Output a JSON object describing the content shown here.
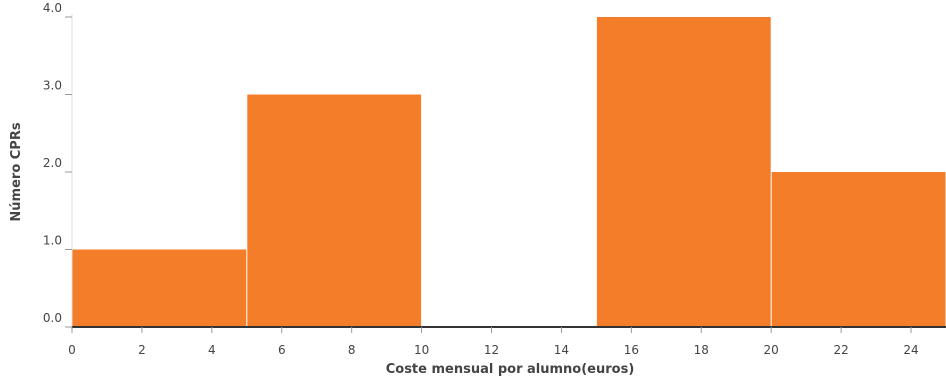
{
  "chart_data": {
    "type": "bar",
    "title": "",
    "xlabel": "Coste mensual por alumno(euros)",
    "ylabel": "Número CPRs",
    "xlim": [
      0,
      25
    ],
    "ylim": [
      0,
      4
    ],
    "x_ticks": [
      0,
      2,
      4,
      6,
      8,
      10,
      12,
      14,
      16,
      18,
      20,
      22,
      24
    ],
    "x_tick_labels": [
      "0",
      "2",
      "4",
      "6",
      "8",
      "10",
      "12",
      "14",
      "16",
      "18",
      "20",
      "22",
      "24"
    ],
    "y_ticks": [
      0,
      1,
      2,
      3,
      4
    ],
    "y_tick_labels": [
      "0.0",
      "1.0",
      "2.0",
      "3.0",
      "4.0"
    ],
    "bins": [
      {
        "x0": 0,
        "x1": 5,
        "value": 1
      },
      {
        "x0": 5,
        "x1": 10,
        "value": 3
      },
      {
        "x0": 10,
        "x1": 15,
        "value": 0
      },
      {
        "x0": 15,
        "x1": 20,
        "value": 4
      },
      {
        "x0": 20,
        "x1": 25,
        "value": 2
      }
    ],
    "bar_color": "#f47d2a",
    "grid": false
  }
}
